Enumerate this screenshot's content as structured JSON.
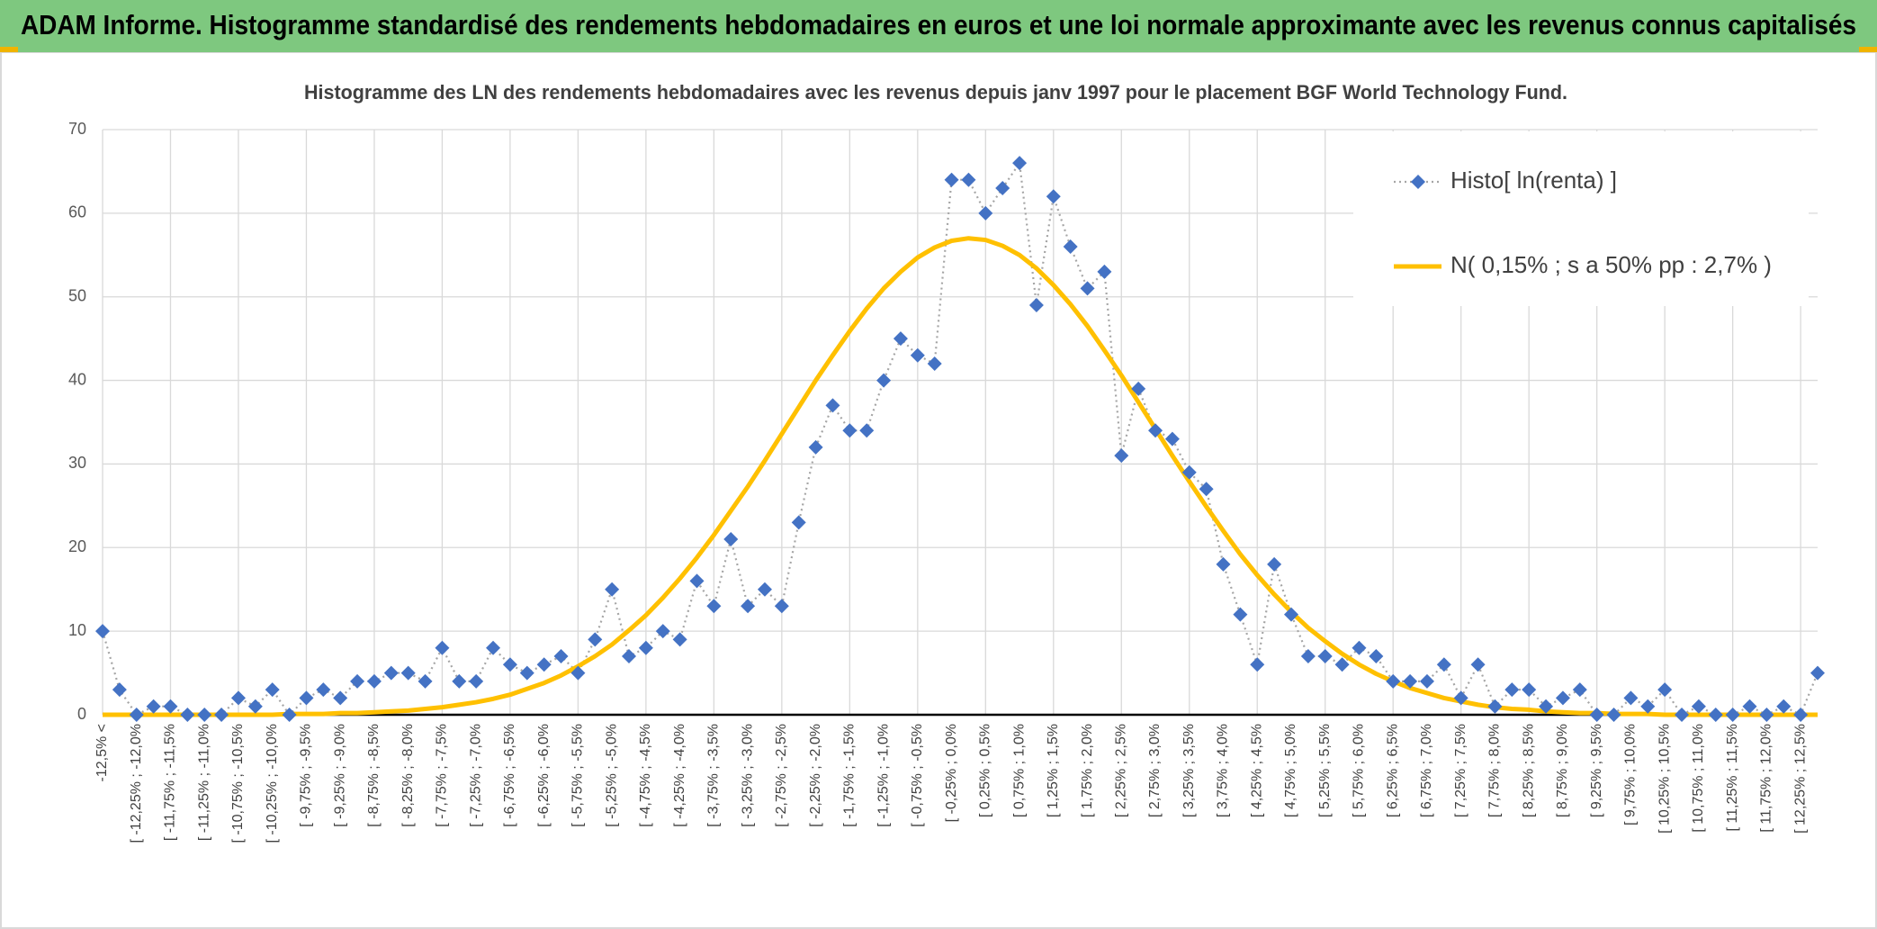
{
  "chart_data": {
    "type": "line",
    "title": "ADAM Informe. Histogramme standardisé des rendements hebdomadaires en euros et une loi normale approximante avec les revenus connus capitalisés",
    "subtitle": "Histogramme des LN des rendements hebdomadaires avec les revenus depuis janv 1997 pour le placement BGF World Technology Fund.",
    "categories": [
      "-12,5% <",
      null,
      "[ -12,25% ; -12,0%",
      null,
      "[ -11,75% ; -11,5%",
      null,
      "[ -11,25% ; -11,0%",
      null,
      "[ -10,75% ; -10,5%",
      null,
      "[ -10,25% ; -10,0%",
      null,
      "[ -9,75% ; -9,5%",
      null,
      "[ -9,25% ; -9,0%",
      null,
      "[ -8,75% ; -8,5%",
      null,
      "[ -8,25% ; -8,0%",
      null,
      "[ -7,75% ; -7,5%",
      null,
      "[ -7,25% ; -7,0%",
      null,
      "[ -6,75% ; -6,5%",
      null,
      "[ -6,25% ; -6,0%",
      null,
      "[ -5,75% ; -5,5%",
      null,
      "[ -5,25% ; -5,0%",
      null,
      "[ -4,75% ; -4,5%",
      null,
      "[ -4,25% ; -4,0%",
      null,
      "[ -3,75% ; -3,5%",
      null,
      "[ -3,25% ; -3,0%",
      null,
      "[ -2,75% ; -2,5%",
      null,
      "[ -2,25% ; -2,0%",
      null,
      "[ -1,75% ; -1,5%",
      null,
      "[ -1,25% ; -1,0%",
      null,
      "[ -0,75% ; -0,5%",
      null,
      "[ -0,25% ; 0,0%",
      null,
      "[ 0,25% ; 0,5%",
      null,
      "[ 0,75% ; 1,0%",
      null,
      "[ 1,25% ; 1,5%",
      null,
      "[ 1,75% ; 2,0%",
      null,
      "[ 2,25% ; 2,5%",
      null,
      "[ 2,75% ; 3,0%",
      null,
      "[ 3,25% ; 3,5%",
      null,
      "[ 3,75% ; 4,0%",
      null,
      "[ 4,25% ; 4,5%",
      null,
      "[ 4,75% ; 5,0%",
      null,
      "[ 5,25% ; 5,5%",
      null,
      "[ 5,75% ; 6,0%",
      null,
      "[ 6,25% ; 6,5%",
      null,
      "[ 6,75% ; 7,0%",
      null,
      "[ 7,25% ; 7,5%",
      null,
      "[ 7,75% ; 8,0%",
      null,
      "[ 8,25% ; 8,5%",
      null,
      "[ 8,75% ; 9,0%",
      null,
      "[ 9,25% ; 9,5%",
      null,
      "[ 9,75% ; 10,0%",
      null,
      "[ 10,25% ; 10,5%",
      null,
      "[ 10,75% ; 11,0%",
      null,
      "[ 11,25% ; 11,5%",
      null,
      "[ 11,75% ; 12,0%",
      null,
      "[ 12,25% ; 12,5%",
      null
    ],
    "series": [
      {
        "name": "Histo[ ln(renta) ]",
        "color": "#4472c4",
        "line_color": "#a5a5a5",
        "marker": "diamond",
        "line_style": "dotted",
        "values": [
          10,
          3,
          0,
          1,
          1,
          0,
          0,
          0,
          2,
          1,
          3,
          0,
          2,
          3,
          2,
          4,
          4,
          5,
          5,
          4,
          8,
          4,
          4,
          8,
          6,
          5,
          6,
          7,
          5,
          9,
          15,
          7,
          8,
          10,
          9,
          16,
          13,
          21,
          13,
          15,
          13,
          23,
          32,
          37,
          34,
          34,
          40,
          45,
          43,
          42,
          64,
          64,
          60,
          63,
          66,
          49,
          62,
          56,
          51,
          53,
          31,
          39,
          34,
          33,
          29,
          27,
          18,
          12,
          6,
          18,
          12,
          7,
          7,
          6,
          8,
          7,
          4,
          4,
          4,
          6,
          2,
          6,
          1,
          3,
          3,
          1,
          2,
          3,
          0,
          0,
          2,
          1,
          3,
          0,
          1,
          0,
          0,
          1,
          0,
          1,
          0,
          5
        ]
      },
      {
        "name": "N( 0,15% ; s a 50% pp : 2,7% )",
        "color": "#ffc000",
        "line_style": "solid",
        "values": [
          0,
          0,
          0,
          0,
          0,
          0,
          0,
          0,
          0,
          0,
          0,
          0.1,
          0.1,
          0.1,
          0.2,
          0.2,
          0.3,
          0.4,
          0.5,
          0.7,
          0.9,
          1.2,
          1.5,
          1.9,
          2.4,
          3.1,
          3.8,
          4.7,
          5.8,
          7.0,
          8.4,
          10.1,
          11.9,
          14.0,
          16.3,
          18.8,
          21.5,
          24.4,
          27.3,
          30.4,
          33.6,
          36.8,
          40.0,
          43.0,
          45.9,
          48.6,
          51.0,
          53.0,
          54.7,
          55.9,
          56.7,
          57.0,
          56.8,
          56.1,
          55.0,
          53.4,
          51.4,
          49.1,
          46.5,
          43.6,
          40.6,
          37.4,
          34.2,
          31.0,
          27.9,
          24.9,
          22.0,
          19.2,
          16.7,
          14.4,
          12.3,
          10.4,
          8.8,
          7.3,
          6.0,
          4.9,
          4.0,
          3.2,
          2.6,
          2.0,
          1.6,
          1.2,
          0.9,
          0.7,
          0.6,
          0.4,
          0.3,
          0.2,
          0.2,
          0.1,
          0.1,
          0.1,
          0,
          0,
          0,
          0,
          0,
          0,
          0,
          0,
          0,
          0
        ]
      }
    ],
    "ylim": [
      0,
      70
    ],
    "yticks": [
      0,
      10,
      20,
      30,
      40,
      50,
      60,
      70
    ],
    "grid": true,
    "legend": "top-right"
  }
}
